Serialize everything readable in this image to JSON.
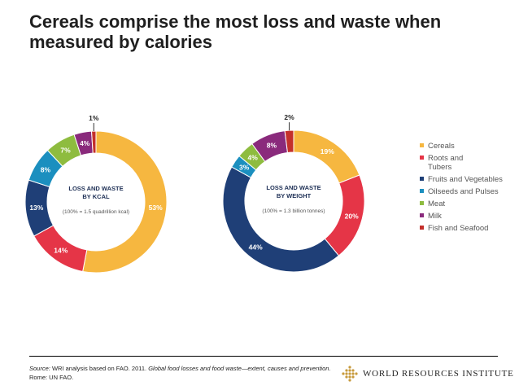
{
  "title": {
    "line1": "Cereals comprise the most loss and waste when",
    "line2": "measured by calories"
  },
  "chart_data": [
    {
      "type": "pie",
      "variant": "donut",
      "center_title_line1": "LOSS AND WASTE",
      "center_title_line2": "BY KCAL",
      "center_note": "(100% = 1.5 quadrillion kcal)",
      "categories": [
        "Cereals",
        "Roots and Tubers",
        "Fruits and Vegetables",
        "Oilseeds and Pulses",
        "Meat",
        "Milk",
        "Fish and Seafood"
      ],
      "values": [
        53,
        14,
        13,
        8,
        7,
        4,
        1
      ],
      "labels": [
        "53%",
        "14%",
        "13%",
        "8%",
        "7%",
        "4%",
        "1%"
      ]
    },
    {
      "type": "pie",
      "variant": "donut",
      "center_title_line1": "LOSS AND WASTE",
      "center_title_line2": "BY WEIGHT",
      "center_note": "(100% = 1.3 billion tonnes)",
      "categories": [
        "Cereals",
        "Roots and Tubers",
        "Fruits and Vegetables",
        "Oilseeds and Pulses",
        "Meat",
        "Milk",
        "Fish and Seafood"
      ],
      "values": [
        19,
        20,
        44,
        3,
        4,
        8,
        2
      ],
      "labels": [
        "19%",
        "20%",
        "44%",
        "3%",
        "4%",
        "8%",
        "2%"
      ]
    }
  ],
  "legend": {
    "items": [
      {
        "label": "Cereals",
        "color": "#f6b740"
      },
      {
        "label": "Roots and Tubers",
        "color": "#e53547"
      },
      {
        "label": "Fruits and Vegetables",
        "color": "#1f3f77"
      },
      {
        "label": "Oilseeds and Pulses",
        "color": "#1b8fbf"
      },
      {
        "label": "Meat",
        "color": "#8ebc3f"
      },
      {
        "label": "Milk",
        "color": "#8a2a7c"
      },
      {
        "label": "Fish and Seafood",
        "color": "#c4302b"
      }
    ]
  },
  "source": {
    "label": "Source:",
    "text1": " WRI analysis based on FAO. 2011. ",
    "italic": "Global food losses and food waste—extent, causes and prevention",
    "text2": ". Rome: UN FAO."
  },
  "footer": {
    "org_name": "WORLD RESOURCES INSTITUTE",
    "logo_color": "#c79a3c"
  }
}
